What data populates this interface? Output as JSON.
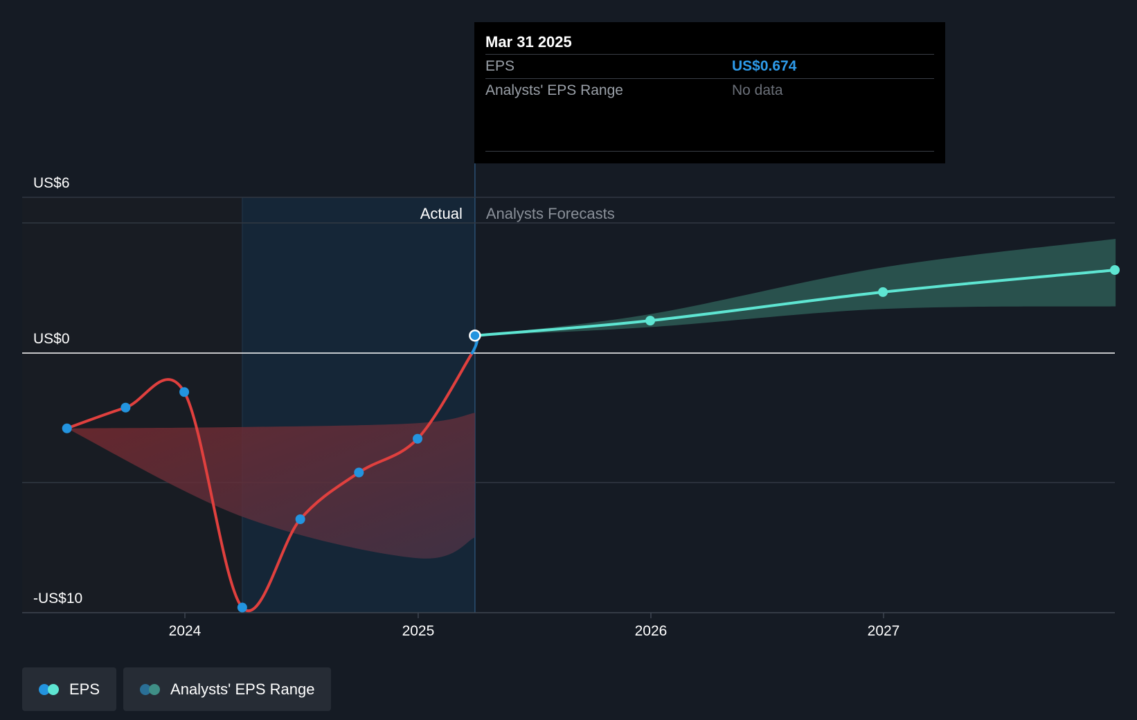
{
  "tooltip": {
    "date": "Mar 31 2025",
    "eps_label": "EPS",
    "eps_value": "US$0.674",
    "range_label": "Analysts' EPS Range",
    "range_value": "No data"
  },
  "regions": {
    "actual_label": "Actual",
    "forecast_label": "Analysts Forecasts"
  },
  "legend": [
    {
      "label": "EPS",
      "colors": [
        "#2394df",
        "#5ee5d2"
      ]
    },
    {
      "label": "Analysts' EPS Range",
      "colors": [
        "#2a6f96",
        "#3f8f86"
      ]
    }
  ],
  "colors": {
    "background": "#151b24",
    "eps_negative": "#e0403e",
    "eps_positive_actual": "#2394df",
    "eps_forecast": "#5ee5d2",
    "forecast_band": "#2d5a55",
    "past_band": "#7a2a2f",
    "actual_shade": "#15283b",
    "marker": "#2394df"
  },
  "chart_data": {
    "type": "line",
    "title": "",
    "xlabel": "",
    "ylabel": "",
    "x_ticks": [
      "2024",
      "2025",
      "2026",
      "2027"
    ],
    "y_ticks": [
      {
        "label": "US$6",
        "value": 6
      },
      {
        "label": "US$0",
        "value": 0
      },
      {
        "label": "-US$10",
        "value": -10
      }
    ],
    "xlim": [
      "2023-05-01",
      "2027-12-31"
    ],
    "ylim": [
      -10,
      6
    ],
    "grid": true,
    "actual_period": {
      "start": "2024-03-31",
      "end": "2025-03-31"
    },
    "series": [
      {
        "name": "EPS",
        "kind": "actual",
        "points": [
          {
            "x": "2023-06-30",
            "y": -2.9
          },
          {
            "x": "2023-09-30",
            "y": -2.1
          },
          {
            "x": "2023-12-31",
            "y": -1.5
          },
          {
            "x": "2024-03-31",
            "y": -9.8
          },
          {
            "x": "2024-06-30",
            "y": -6.4
          },
          {
            "x": "2024-09-30",
            "y": -4.6
          },
          {
            "x": "2024-12-31",
            "y": -3.3
          },
          {
            "x": "2025-03-31",
            "y": 0.674
          }
        ]
      },
      {
        "name": "EPS",
        "kind": "forecast",
        "points": [
          {
            "x": "2025-03-31",
            "y": 0.674
          },
          {
            "x": "2025-12-31",
            "y": 1.25
          },
          {
            "x": "2026-12-31",
            "y": 2.35
          },
          {
            "x": "2027-12-31",
            "y": 3.2
          }
        ]
      }
    ],
    "forecast_range": [
      {
        "x": "2025-03-31",
        "low": 0.674,
        "high": 0.674
      },
      {
        "x": "2025-12-31",
        "low": 1.0,
        "high": 1.5
      },
      {
        "x": "2026-12-31",
        "low": 1.7,
        "high": 3.3
      },
      {
        "x": "2027-12-31",
        "low": 1.8,
        "high": 4.4
      }
    ],
    "past_range": [
      {
        "x": "2023-06-30",
        "low": -2.9,
        "high": -2.9
      },
      {
        "x": "2024-03-31",
        "low": -6.3,
        "high": -2.85
      },
      {
        "x": "2024-12-31",
        "low": -7.9,
        "high": -2.7
      },
      {
        "x": "2025-03-31",
        "low": -7.1,
        "high": -2.3
      }
    ]
  }
}
